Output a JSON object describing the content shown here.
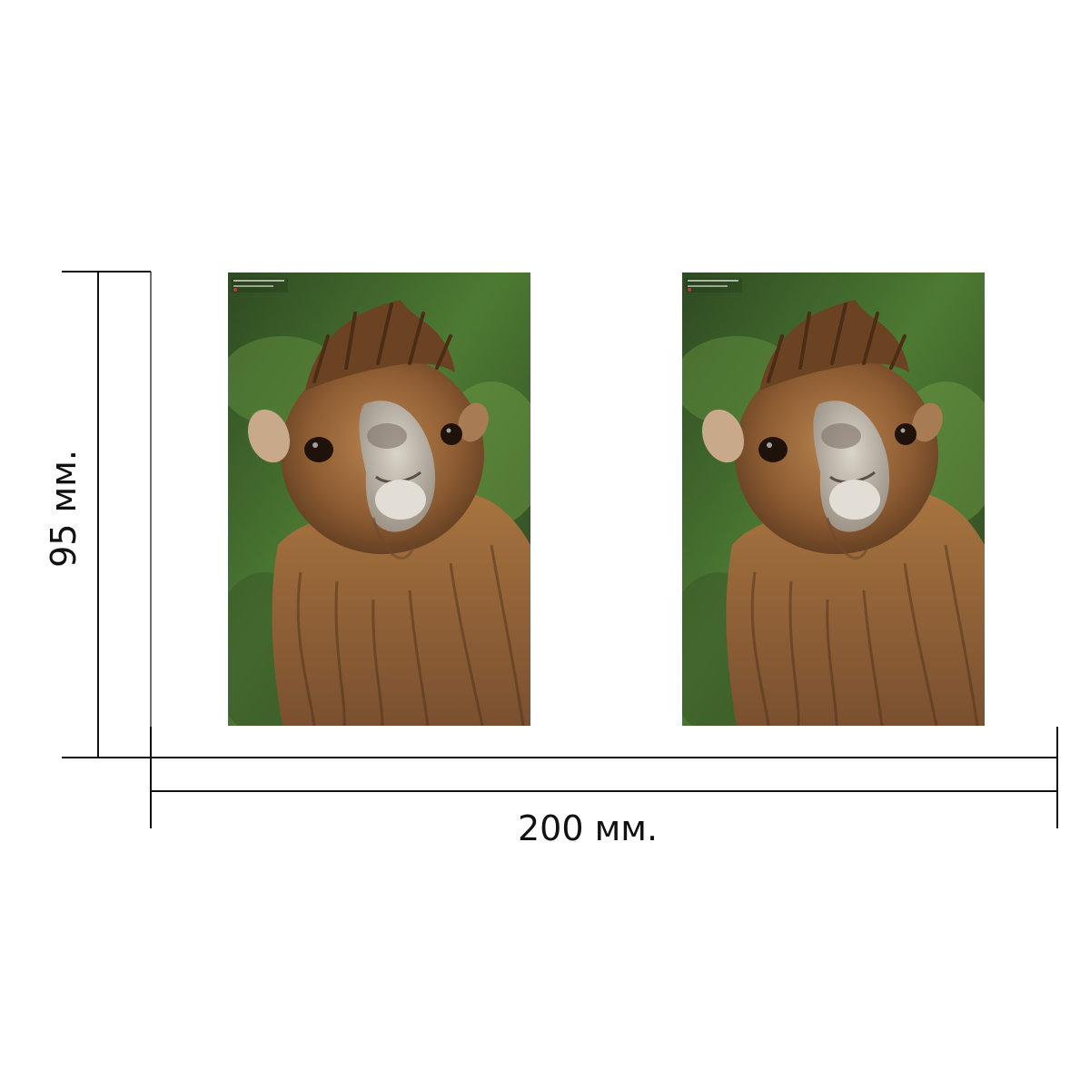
{
  "dimensions": {
    "width_label": "200 мм.",
    "height_label": "95 мм."
  },
  "photos": [
    {
      "subject": "camel-portrait",
      "watermark_icon": "photographer-watermark"
    },
    {
      "subject": "camel-portrait",
      "watermark_icon": "photographer-watermark"
    }
  ],
  "colors": {
    "background": "#ffffff",
    "line": "#111111"
  }
}
